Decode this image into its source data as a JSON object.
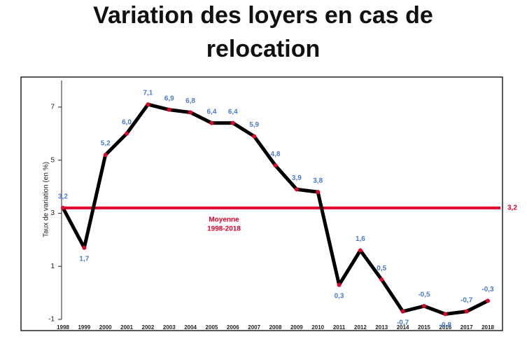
{
  "chart_data": {
    "type": "line",
    "title": [
      "Variation des loyers en cas de",
      "relocation"
    ],
    "y_label": "Taux de variation (en %)",
    "categories": [
      "1998",
      "1999",
      "2000",
      "2001",
      "2002",
      "2003",
      "2004",
      "2005",
      "2006",
      "2007",
      "2008",
      "2009",
      "2010",
      "2011",
      "2012",
      "2013",
      "2014",
      "2015",
      "2016",
      "2017",
      "2018"
    ],
    "values": [
      3.2,
      1.7,
      5.2,
      6.0,
      7.1,
      6.9,
      6.8,
      6.4,
      6.4,
      5.9,
      4.8,
      3.9,
      3.8,
      0.3,
      1.6,
      0.5,
      -0.7,
      -0.5,
      -0.8,
      -0.7,
      -0.3
    ],
    "value_labels": [
      "3,2",
      "1,7",
      "5,2",
      "6,0",
      "7,1",
      "6,9",
      "6,8",
      "6,4",
      "6,4",
      "5,9",
      "4,8",
      "3,9",
      "3,8",
      "0,3",
      "1,6",
      "0,5",
      "-0,7",
      "-0,5",
      "-0,8",
      "-0,7",
      "-0,3"
    ],
    "color": "#000000",
    "marker_color": "#e0002a",
    "label_color": "#4a7bd0",
    "ylim": [
      -1,
      8
    ],
    "yticks": [
      -1,
      1,
      3,
      5,
      7
    ],
    "reference_line": {
      "value": 3.2,
      "label": "3,2",
      "annotation": [
        "Moyenne",
        "1998-2018"
      ],
      "color": "#e0002a"
    }
  }
}
